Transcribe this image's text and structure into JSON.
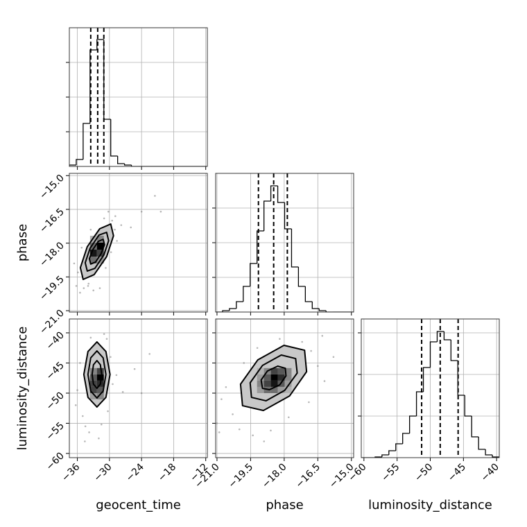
{
  "chart_data": [
    {
      "type": "histogram",
      "color": "#000000",
      "grid": true,
      "bins": [
        -37.5,
        -36.21,
        -34.92,
        -33.63,
        -32.34,
        -31.05,
        -29.76,
        -28.47,
        -27.18,
        -25.89,
        -24.6,
        -23.31,
        -22.02,
        -20.73,
        -19.44,
        -18.15,
        -16.86,
        -15.57,
        -14.28,
        -12.99,
        -11.7
      ],
      "values": [
        2,
        10,
        62,
        168,
        183,
        68,
        15,
        4,
        2,
        0,
        0,
        0,
        0,
        0,
        0,
        0,
        0,
        0,
        0,
        0
      ],
      "quantiles": [
        -33.5,
        -32.2,
        -31.05
      ],
      "xlim": [
        -37.5,
        -11.7
      ],
      "xticks": [
        -36,
        -30,
        -24,
        -18,
        -12
      ],
      "ylim": [
        0,
        200
      ],
      "yticks": [
        50,
        100,
        150
      ]
    },
    {
      "type": "scatter",
      "color": "#000000",
      "grid": true,
      "ylabel": "phase",
      "x": [
        -36.2,
        -35.5,
        -34.8,
        -33.9,
        -35.9,
        -34.0,
        -33.0,
        -29.5,
        -28.9,
        -30.2,
        -29.0,
        -28.6,
        -31.0,
        -27.8,
        -26.0,
        -24.0,
        -21.5,
        -20.4,
        -36.6,
        -33.5,
        -30.7,
        -31.8,
        -29.7,
        -35.2
      ],
      "y": [
        -19.9,
        -20.2,
        -20.0,
        -19.8,
        -19.3,
        -19.9,
        -20.1,
        -17.0,
        -16.8,
        -16.6,
        -17.4,
        -17.9,
        -16.9,
        -17.2,
        -17.3,
        -16.6,
        -15.9,
        -16.6,
        -18.9,
        -17.4,
        -19.1,
        -20.0,
        -18.4,
        -18.2
      ],
      "density": {
        "xbins": [
          -33.63,
          -32.34,
          -31.05
        ],
        "ybins": [
          -18.904,
          -18.596,
          -18.288,
          -17.98,
          -17.672
        ],
        "counts": [
          [
            40,
            20
          ],
          [
            80,
            60
          ],
          [
            40,
            90
          ],
          [
            10,
            30
          ]
        ]
      },
      "contours": [
        {
          "x": [
            -29.76,
            -29.24,
            -30.53,
            -32.86,
            -34.92,
            -35.44,
            -34.15,
            -31.82
          ],
          "y": [
            -17.15,
            -17.67,
            -18.6,
            -19.4,
            -19.61,
            -19.09,
            -18.16,
            -17.36
          ]
        },
        {
          "x": [
            -30.53,
            -30.15,
            -31.05,
            -32.73,
            -34.15,
            -34.53,
            -33.63,
            -31.95
          ],
          "y": [
            -17.52,
            -17.89,
            -18.53,
            -19.12,
            -19.24,
            -18.87,
            -18.23,
            -17.64
          ]
        },
        {
          "x": [
            -31.18,
            -30.92,
            -31.57,
            -32.6,
            -33.5,
            -33.76,
            -33.11,
            -32.08
          ],
          "y": [
            -17.83,
            -18.07,
            -18.47,
            -18.84,
            -18.93,
            -18.69,
            -18.29,
            -17.92
          ]
        }
      ],
      "xlim": [
        -37.5,
        -11.7
      ],
      "xticks": [
        -36,
        -30,
        -24,
        -18,
        -12
      ],
      "ylim": [
        -21.06,
        -14.9
      ],
      "yticks": [
        {
          "value": -21.0,
          "label": "−21.0"
        },
        {
          "value": -19.5,
          "label": "−19.5"
        },
        {
          "value": -18.0,
          "label": "−18.0"
        },
        {
          "value": -16.5,
          "label": "−16.5"
        },
        {
          "value": -15.0,
          "label": "−15.0"
        }
      ]
    },
    {
      "type": "histogram",
      "color": "#000000",
      "grid": true,
      "bins": [
        -21.06,
        -20.752,
        -20.444,
        -20.136,
        -19.828,
        -19.52,
        -19.212,
        -18.904,
        -18.596,
        -18.288,
        -17.98,
        -17.672,
        -17.364,
        -17.056,
        -16.748,
        -16.44,
        -16.132,
        -15.824,
        -15.516,
        -15.208,
        -14.9
      ],
      "values": [
        0,
        2,
        5,
        15,
        37,
        70,
        117,
        160,
        182,
        158,
        120,
        65,
        37,
        15,
        5,
        2,
        0,
        0,
        0,
        0
      ],
      "quantiles": [
        -19.15,
        -18.47,
        -17.86
      ],
      "xlim": [
        -21.06,
        -14.9
      ],
      "xticks": [
        -21.0,
        -19.5,
        -18.0,
        -16.5,
        -15.0
      ],
      "ylim": [
        0,
        200
      ],
      "yticks": [
        50,
        100,
        150
      ]
    },
    {
      "type": "scatter",
      "color": "#000000",
      "grid": true,
      "xlabel": "geocent_time",
      "ylabel": "luminosity_distance",
      "x": [
        -34.5,
        -35.0,
        -33.8,
        -31.5,
        -30.3,
        -29.8,
        -30.5,
        -31.0,
        -33.5,
        -35.5,
        -36.0,
        -29.4,
        -28.7,
        -27.5,
        -25.3,
        -24.0,
        -22.5,
        -36.3,
        -32.0,
        -34.6
      ],
      "y": [
        -55.5,
        -53.8,
        -56.5,
        -55.2,
        -53.0,
        -44.0,
        -41.0,
        -40.2,
        -40.8,
        -45.0,
        -49.5,
        -48.5,
        -47.0,
        -49.8,
        -46.0,
        -50.0,
        -43.5,
        -52.0,
        -57.5,
        -58.0
      ],
      "density": {
        "xbins": [
          -33.63,
          -32.34,
          -31.05
        ],
        "ybins": [
          -51.04,
          -50.0,
          -48.96,
          -47.92,
          -46.88,
          -45.84
        ],
        "counts": [
          [
            20,
            30
          ],
          [
            60,
            50
          ],
          [
            60,
            70
          ],
          [
            50,
            90
          ],
          [
            30,
            60
          ]
        ]
      },
      "contours": [
        {
          "x": [
            -32.34,
            -30.66,
            -29.89,
            -30.66,
            -32.34,
            -34.02,
            -34.79,
            -34.02
          ],
          "y": [
            -41.5,
            -43.1,
            -46.9,
            -50.7,
            -52.3,
            -50.7,
            -46.9,
            -43.1
          ]
        },
        {
          "x": [
            -32.34,
            -31.18,
            -30.66,
            -31.18,
            -32.34,
            -33.5,
            -34.02,
            -33.5
          ],
          "y": [
            -43.0,
            -44.14,
            -46.9,
            -49.66,
            -50.8,
            -49.66,
            -46.9,
            -44.14
          ]
        },
        {
          "x": [
            -32.34,
            -31.7,
            -31.44,
            -31.7,
            -32.34,
            -32.99,
            -33.24,
            -32.99
          ],
          "y": [
            -44.6,
            -45.29,
            -46.9,
            -48.51,
            -49.2,
            -48.51,
            -46.9,
            -45.29
          ]
        }
      ],
      "xlim": [
        -37.5,
        -11.7
      ],
      "xticks": [
        {
          "value": -36,
          "label": "−36"
        },
        {
          "value": -30,
          "label": "−30"
        },
        {
          "value": -24,
          "label": "−24"
        },
        {
          "value": -18,
          "label": "−18"
        },
        {
          "value": -12,
          "label": "−12"
        }
      ],
      "ylim": [
        -60.7,
        -37.7
      ],
      "yticks": [
        {
          "value": -60,
          "label": "−60"
        },
        {
          "value": -55,
          "label": "−55"
        },
        {
          "value": -50,
          "label": "−50"
        },
        {
          "value": -45,
          "label": "−45"
        },
        {
          "value": -40,
          "label": "−40"
        }
      ]
    },
    {
      "type": "scatter",
      "color": "#000000",
      "grid": true,
      "xlabel": "phase",
      "x": [
        -20.3,
        -20.0,
        -19.4,
        -18.6,
        -20.8,
        -20.6,
        -19.8,
        -16.8,
        -16.5,
        -17.2,
        -18.2,
        -16.2,
        -16.9,
        -17.8,
        -20.9,
        -15.8,
        -19.2,
        -18.9,
        -21.0,
        -16.3
      ],
      "y": [
        -53.5,
        -56.0,
        -57.0,
        -56.2,
        -51.0,
        -49.0,
        -45.0,
        -43.0,
        -45.5,
        -41.5,
        -41.0,
        -48.0,
        -51.5,
        -54.0,
        -56.5,
        -44.0,
        -42.5,
        -58.0,
        -55.0,
        -40.5
      ],
      "density": {
        "xbins": [
          -19.212,
          -18.904,
          -18.596,
          -18.288,
          -17.98,
          -17.672
        ],
        "ybins": [
          -50.0,
          -48.96,
          -47.92,
          -46.88,
          -45.84
        ],
        "counts": [
          [
            20,
            40,
            40,
            20,
            10
          ],
          [
            30,
            60,
            80,
            50,
            20
          ],
          [
            20,
            50,
            90,
            70,
            30
          ],
          [
            10,
            30,
            60,
            50,
            30
          ]
        ]
      },
      "contours": [
        {
          "x": [
            -17.09,
            -17.0,
            -17.76,
            -18.93,
            -19.86,
            -19.95,
            -19.18,
            -18.01
          ],
          "y": [
            -42.88,
            -46.44,
            -50.47,
            -52.88,
            -52.08,
            -48.51,
            -44.49,
            -42.07
          ]
        },
        {
          "x": [
            -17.49,
            -17.42,
            -17.98,
            -18.81,
            -19.46,
            -19.52,
            -18.97,
            -18.13
          ],
          "y": [
            -44.26,
            -46.67,
            -49.55,
            -51.27,
            -50.7,
            -48.28,
            -45.41,
            -43.68
          ]
        },
        {
          "x": [
            -17.95,
            -17.92,
            -18.2,
            -18.66,
            -18.97,
            -19.03,
            -18.75,
            -18.29
          ],
          "y": [
            -45.87,
            -47.13,
            -48.63,
            -49.43,
            -49.2,
            -47.82,
            -46.33,
            -45.52
          ]
        }
      ],
      "xlim": [
        -21.06,
        -14.9
      ],
      "xticks": [
        {
          "value": -21.0,
          "label": "−21.0"
        },
        {
          "value": -19.5,
          "label": "−19.5"
        },
        {
          "value": -18.0,
          "label": "−18.0"
        },
        {
          "value": -16.5,
          "label": "−16.5"
        },
        {
          "value": -15.0,
          "label": "−15.0"
        }
      ],
      "ylim": [
        -60.7,
        -37.7
      ],
      "yticks": [
        -60,
        -55,
        -50,
        -45,
        -40
      ]
    },
    {
      "type": "histogram",
      "color": "#000000",
      "grid": true,
      "xlabel": "luminosity_distance",
      "bins": [
        -60.4,
        -59.36,
        -58.32,
        -57.28,
        -56.24,
        -55.2,
        -54.16,
        -53.12,
        -52.08,
        -51.04,
        -50.0,
        -48.96,
        -47.92,
        -46.88,
        -45.84,
        -44.8,
        -43.76,
        -42.72,
        -41.68,
        -40.64,
        -39.6
      ],
      "values": [
        0,
        0,
        1,
        4,
        10,
        20,
        35,
        60,
        95,
        130,
        167,
        182,
        170,
        140,
        90,
        60,
        30,
        12,
        4,
        1
      ],
      "quantiles": [
        -51.3,
        -48.5,
        -45.8
      ],
      "xlim": [
        -60.4,
        -39.6
      ],
      "xticks": [
        {
          "value": -60,
          "label": "−60"
        },
        {
          "value": -55,
          "label": "−55"
        },
        {
          "value": -50,
          "label": "−50"
        },
        {
          "value": -45,
          "label": "−45"
        },
        {
          "value": -40,
          "label": "−40"
        }
      ],
      "ylim": [
        0,
        200
      ],
      "yticks": [
        60,
        120,
        180
      ]
    }
  ]
}
